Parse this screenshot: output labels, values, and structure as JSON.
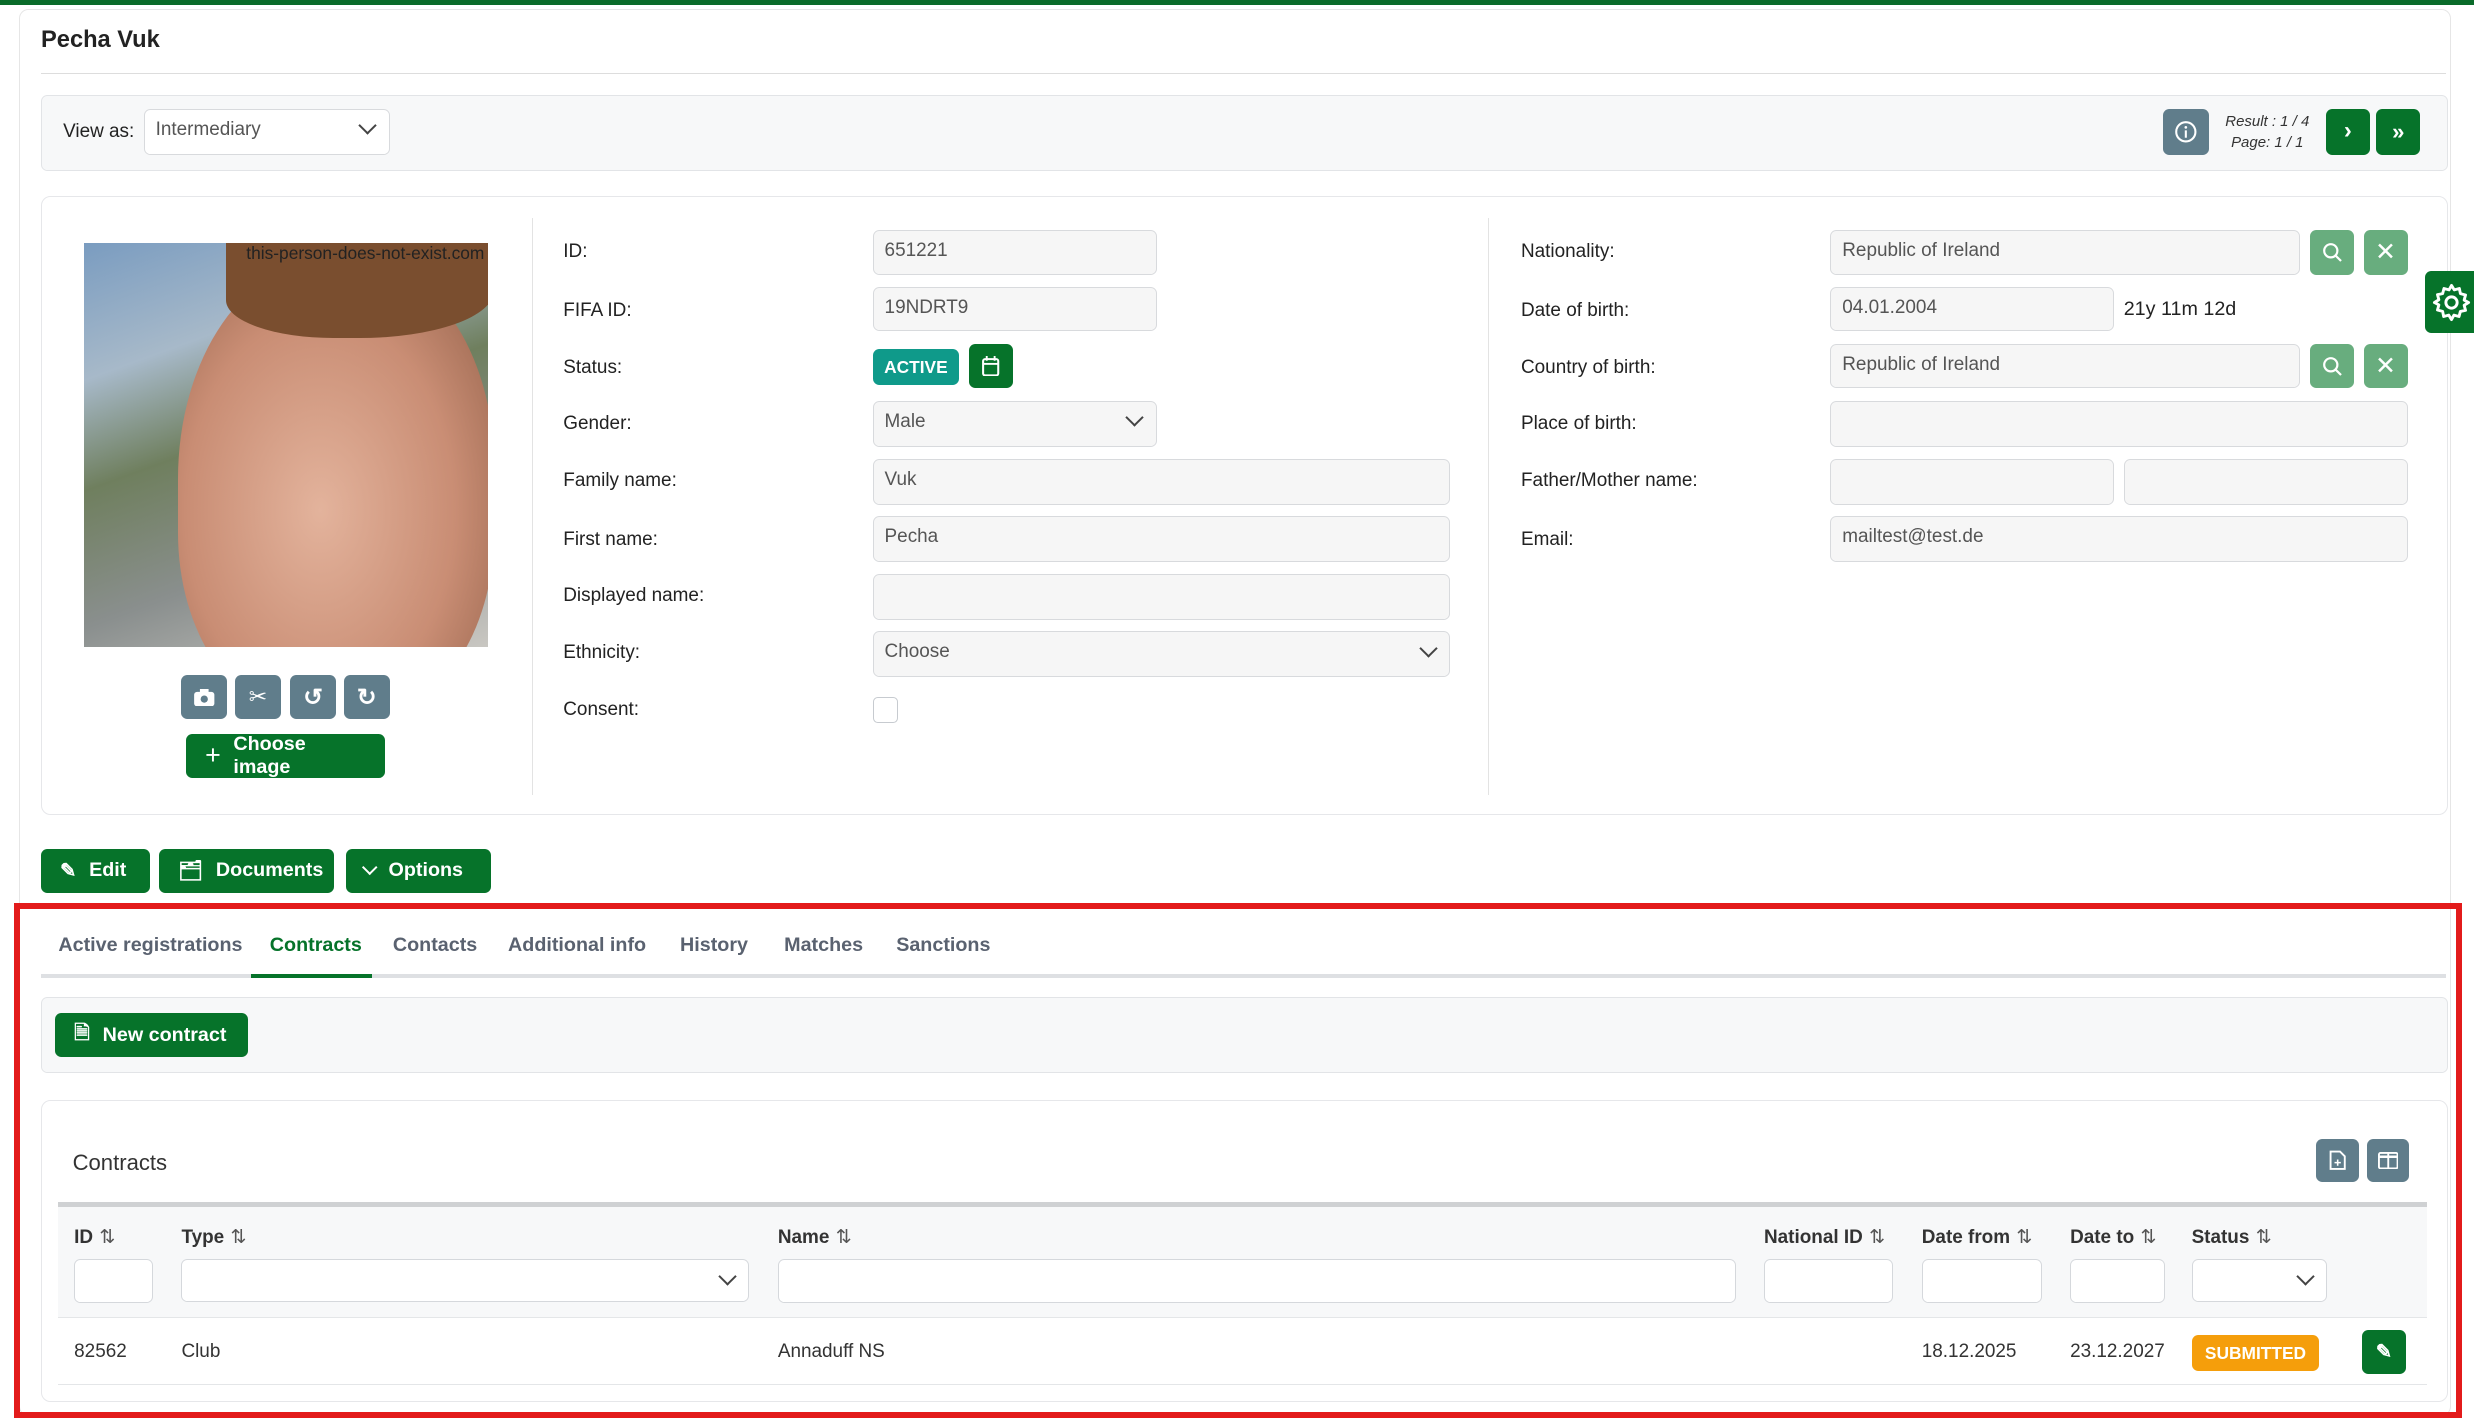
{
  "header": {
    "title": "Pecha Vuk"
  },
  "viewbar": {
    "view_as_label": "View as:",
    "view_as_value": "Intermediary",
    "result_text": "Result : 1 / 4",
    "page_text": "Page: 1 / 1"
  },
  "photo": {
    "watermark": "this-person-does-not-exist.com",
    "choose_image_label": "Choose image"
  },
  "fields": {
    "id": {
      "label": "ID:",
      "value": "651221"
    },
    "fifa_id": {
      "label": "FIFA ID:",
      "value": "19NDRT9"
    },
    "status": {
      "label": "Status:",
      "value": "ACTIVE"
    },
    "gender": {
      "label": "Gender:",
      "value": "Male"
    },
    "family_name": {
      "label": "Family name:",
      "value": "Vuk"
    },
    "first_name": {
      "label": "First name:",
      "value": "Pecha"
    },
    "displayed_name": {
      "label": "Displayed name:",
      "value": ""
    },
    "ethnicity": {
      "label": "Ethnicity:",
      "value": "Choose"
    },
    "consent": {
      "label": "Consent:",
      "checked": false
    },
    "nationality": {
      "label": "Nationality:",
      "value": "Republic of Ireland"
    },
    "date_of_birth": {
      "label": "Date of birth:",
      "value": "04.01.2004",
      "age": "21y 11m 12d"
    },
    "country_of_birth": {
      "label": "Country of birth:",
      "value": "Republic of Ireland"
    },
    "place_of_birth": {
      "label": "Place of birth:",
      "value": ""
    },
    "parent_name": {
      "label": "Father/Mother name:",
      "father": "",
      "mother": ""
    },
    "email": {
      "label": "Email:",
      "value": "mailtest@test.de"
    }
  },
  "actions": {
    "edit": "Edit",
    "documents": "Documents",
    "options": "Options"
  },
  "tabs": [
    {
      "label": "Active registrations",
      "active": false
    },
    {
      "label": "Contracts",
      "active": true
    },
    {
      "label": "Contacts",
      "active": false
    },
    {
      "label": "Additional info",
      "active": false
    },
    {
      "label": "History",
      "active": false
    },
    {
      "label": "Matches",
      "active": false
    },
    {
      "label": "Sanctions",
      "active": false
    }
  ],
  "contracts": {
    "new_contract_label": "New contract",
    "title": "Contracts",
    "columns": [
      "ID",
      "Type",
      "Name",
      "National ID",
      "Date from",
      "Date to",
      "Status"
    ],
    "rows": [
      {
        "id": "82562",
        "type": "Club",
        "name": "Annaduff NS",
        "national_id": "",
        "date_from": "18.12.2025",
        "date_to": "23.12.2027",
        "status": "SUBMITTED"
      }
    ]
  },
  "colors": {
    "primary": "#06732a",
    "secondary": "#607d8b",
    "active_badge": "#0f9a8a",
    "submitted_badge": "#f59e0b",
    "highlight_frame": "#e31b1b"
  }
}
